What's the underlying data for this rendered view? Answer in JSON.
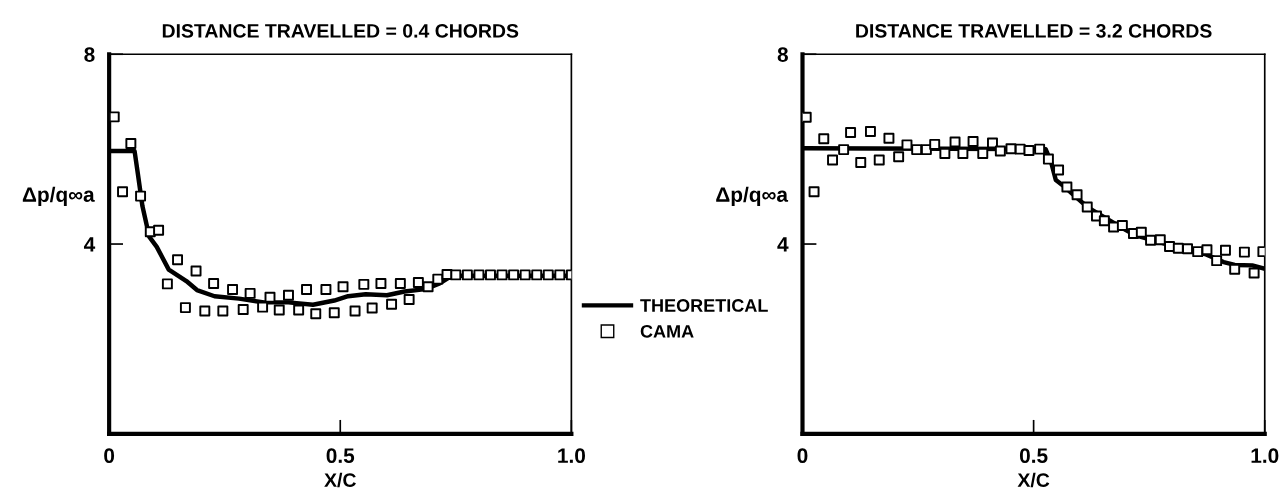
{
  "chart_data": [
    {
      "type": "line",
      "title": "DISTANCE TRAVELLED = 0.4 CHORDS",
      "xlabel": "X/C",
      "ylabel": "Δp/q∞a",
      "xlim": [
        0,
        1
      ],
      "ylim": [
        0,
        8
      ],
      "xticks": [
        0,
        0.5,
        {
          "value": 1,
          "label": "1.0"
        }
      ],
      "yticks": [
        4,
        8
      ],
      "grid": false,
      "legend": "right",
      "series": [
        {
          "name": "THEORETICAL",
          "color": "#000000",
          "marker": "none",
          "line_style": "solid",
          "x": [
            0,
            0.055,
            0.062,
            0.072,
            0.087,
            0.103,
            0.129,
            0.167,
            0.19,
            0.228,
            0.281,
            0.335,
            0.388,
            0.441,
            0.487,
            0.517,
            0.555,
            0.601,
            0.639,
            0.684,
            0.715,
            0.741,
            1.0
          ],
          "values": [
            5.96,
            5.96,
            5.49,
            4.8,
            4.15,
            3.94,
            3.46,
            3.22,
            3.03,
            2.9,
            2.85,
            2.77,
            2.77,
            2.72,
            2.81,
            2.9,
            2.94,
            2.92,
            3.0,
            3.05,
            3.17,
            3.33,
            3.33
          ]
        },
        {
          "name": "CAMA",
          "type": "scatter",
          "color": "#000000",
          "marker": "square",
          "x": [
            0.011,
            0.029,
            0.047,
            0.068,
            0.089,
            0.107,
            0.126,
            0.148,
            0.165,
            0.188,
            0.207,
            0.226,
            0.246,
            0.267,
            0.29,
            0.305,
            0.332,
            0.348,
            0.368,
            0.388,
            0.41,
            0.427,
            0.447,
            0.469,
            0.487,
            0.506,
            0.532,
            0.551,
            0.569,
            0.588,
            0.611,
            0.63,
            0.649,
            0.669,
            0.69,
            0.711,
            0.731,
            0.75,
            0.775,
            0.8,
            0.825,
            0.85,
            0.875,
            0.9,
            0.925,
            0.95,
            0.975,
            1.0
          ],
          "values": [
            6.68,
            5.1,
            6.12,
            5.01,
            4.26,
            4.29,
            3.16,
            3.67,
            2.66,
            3.43,
            2.59,
            3.17,
            2.59,
            3.04,
            2.62,
            2.96,
            2.67,
            2.88,
            2.61,
            2.92,
            2.61,
            3.04,
            2.53,
            3.04,
            2.55,
            3.1,
            2.59,
            3.15,
            2.65,
            3.17,
            2.73,
            3.17,
            2.83,
            3.19,
            3.1,
            3.26,
            3.36,
            3.35,
            3.35,
            3.35,
            3.35,
            3.35,
            3.35,
            3.35,
            3.35,
            3.35,
            3.35,
            3.35
          ]
        }
      ]
    },
    {
      "type": "line",
      "title": "DISTANCE TRAVELLED = 3.2 CHORDS",
      "xlabel": "X/C",
      "ylabel": "Δp/q∞a",
      "xlim": [
        0,
        1
      ],
      "ylim": [
        0,
        8
      ],
      "xticks": [
        0,
        0.5,
        {
          "value": 1,
          "label": "1.0"
        }
      ],
      "yticks": [
        4,
        8
      ],
      "grid": false,
      "series": [
        {
          "color": "#000000",
          "marker": "none",
          "line_style": "solid",
          "x": [
            0,
            0.526,
            0.538,
            0.548,
            0.569,
            0.588,
            0.619,
            0.657,
            0.688,
            0.719,
            0.757,
            0.796,
            0.834,
            0.873,
            0.911,
            0.935,
            0.973,
            0.996
          ],
          "values": [
            6.02,
            6.0,
            5.72,
            5.35,
            5.19,
            5.02,
            4.76,
            4.54,
            4.36,
            4.19,
            4.08,
            3.97,
            3.88,
            3.78,
            3.62,
            3.56,
            3.55,
            3.49
          ]
        },
        {
          "type": "scatter",
          "color": "#000000",
          "marker": "square",
          "x": [
            0.008,
            0.025,
            0.046,
            0.065,
            0.089,
            0.104,
            0.126,
            0.147,
            0.166,
            0.187,
            0.208,
            0.226,
            0.247,
            0.268,
            0.286,
            0.308,
            0.33,
            0.347,
            0.369,
            0.39,
            0.411,
            0.428,
            0.451,
            0.471,
            0.49,
            0.513,
            0.532,
            0.554,
            0.572,
            0.594,
            0.616,
            0.636,
            0.653,
            0.673,
            0.692,
            0.716,
            0.733,
            0.753,
            0.774,
            0.794,
            0.813,
            0.833,
            0.855,
            0.875,
            0.896,
            0.915,
            0.935,
            0.956,
            0.977,
            0.996
          ],
          "values": [
            6.67,
            5.1,
            6.22,
            5.77,
            5.99,
            6.35,
            5.72,
            6.37,
            5.77,
            6.23,
            5.84,
            6.09,
            5.99,
            5.99,
            6.1,
            5.91,
            6.15,
            5.91,
            6.16,
            5.91,
            6.13,
            5.96,
            6.01,
            6.0,
            5.97,
            6.0,
            5.79,
            5.56,
            5.2,
            5.04,
            4.78,
            4.59,
            4.49,
            4.36,
            4.39,
            4.22,
            4.25,
            4.08,
            4.09,
            3.95,
            3.91,
            3.9,
            3.84,
            3.88,
            3.65,
            3.87,
            3.47,
            3.83,
            3.39,
            3.84
          ]
        }
      ]
    }
  ]
}
